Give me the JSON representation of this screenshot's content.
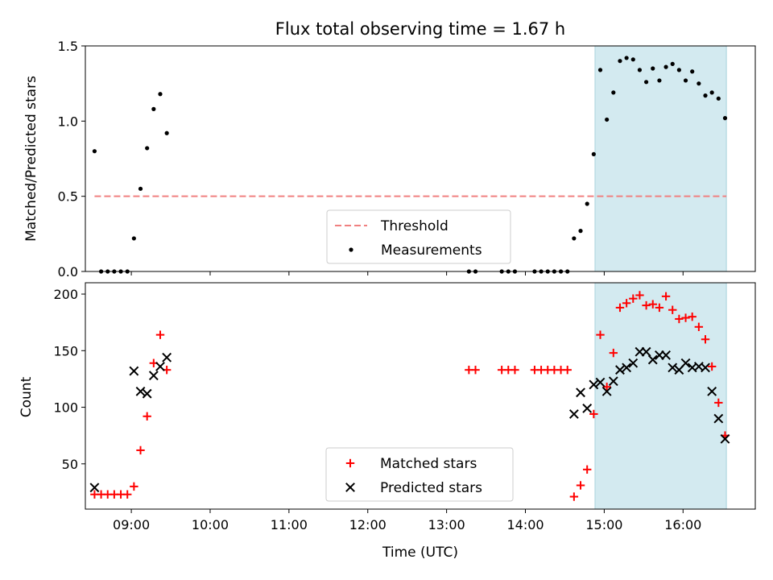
{
  "chart_data": [
    {
      "type": "scatter",
      "title": "Flux total observing time = 1.67 h",
      "xlabel": "",
      "ylabel": "Matched/Predicted stars",
      "xlim": [
        "08:25",
        "16:55"
      ],
      "ylim": [
        0,
        1.5
      ],
      "yticks": [
        0.0,
        0.5,
        1.0,
        1.5
      ],
      "ytick_labels": [
        "0.0",
        "0.5",
        "1.0",
        "1.5"
      ],
      "xticks": [
        "09:00",
        "10:00",
        "11:00",
        "12:00",
        "13:00",
        "14:00",
        "15:00",
        "16:00"
      ],
      "highlight_span": [
        "14:53",
        "16:33"
      ],
      "highlight_color": "#d3eaf0",
      "threshold": {
        "name": "Threshold",
        "y": 0.5,
        "x_start": "08:32",
        "x_end": "16:33",
        "color": "#f08080"
      },
      "legend": {
        "placement": "lower-center",
        "entries": [
          "Threshold",
          "Measurements"
        ]
      },
      "series": [
        {
          "name": "Measurements",
          "marker": "dot",
          "color": "#000000",
          "points": [
            [
              "08:32",
              0.8
            ],
            [
              "08:37",
              0.0
            ],
            [
              "08:42",
              0.0
            ],
            [
              "08:47",
              0.0
            ],
            [
              "08:52",
              0.0
            ],
            [
              "08:57",
              0.0
            ],
            [
              "09:02",
              0.22
            ],
            [
              "09:07",
              0.55
            ],
            [
              "09:12",
              0.82
            ],
            [
              "09:17",
              1.08
            ],
            [
              "09:22",
              1.18
            ],
            [
              "09:27",
              0.92
            ],
            [
              "13:17",
              0.0
            ],
            [
              "13:22",
              0.0
            ],
            [
              "13:42",
              0.0
            ],
            [
              "13:47",
              0.0
            ],
            [
              "13:52",
              0.0
            ],
            [
              "14:07",
              0.0
            ],
            [
              "14:12",
              0.0
            ],
            [
              "14:17",
              0.0
            ],
            [
              "14:22",
              0.0
            ],
            [
              "14:27",
              0.0
            ],
            [
              "14:32",
              0.0
            ],
            [
              "14:37",
              0.22
            ],
            [
              "14:42",
              0.27
            ],
            [
              "14:47",
              0.45
            ],
            [
              "14:52",
              0.78
            ],
            [
              "14:57",
              1.34
            ],
            [
              "15:02",
              1.01
            ],
            [
              "15:07",
              1.19
            ],
            [
              "15:12",
              1.4
            ],
            [
              "15:17",
              1.42
            ],
            [
              "15:22",
              1.41
            ],
            [
              "15:27",
              1.34
            ],
            [
              "15:32",
              1.26
            ],
            [
              "15:37",
              1.35
            ],
            [
              "15:42",
              1.27
            ],
            [
              "15:47",
              1.36
            ],
            [
              "15:52",
              1.38
            ],
            [
              "15:57",
              1.34
            ],
            [
              "16:02",
              1.27
            ],
            [
              "16:07",
              1.33
            ],
            [
              "16:12",
              1.25
            ],
            [
              "16:17",
              1.17
            ],
            [
              "16:22",
              1.19
            ],
            [
              "16:27",
              1.15
            ],
            [
              "16:32",
              1.02
            ]
          ]
        }
      ]
    },
    {
      "type": "scatter",
      "title": "",
      "xlabel": "Time (UTC)",
      "ylabel": "Count",
      "xlim": [
        "08:25",
        "16:55"
      ],
      "ylim": [
        10,
        210
      ],
      "yticks": [
        50,
        100,
        150,
        200
      ],
      "ytick_labels": [
        "50",
        "100",
        "150",
        "200"
      ],
      "xticks": [
        "09:00",
        "10:00",
        "11:00",
        "12:00",
        "13:00",
        "14:00",
        "15:00",
        "16:00"
      ],
      "xtick_labels": [
        "09:00",
        "10:00",
        "11:00",
        "12:00",
        "13:00",
        "14:00",
        "15:00",
        "16:00"
      ],
      "highlight_span": [
        "14:53",
        "16:33"
      ],
      "highlight_color": "#d3eaf0",
      "legend": {
        "placement": "lower-center",
        "entries": [
          "Matched stars",
          "Predicted stars"
        ]
      },
      "series": [
        {
          "name": "Matched stars",
          "marker": "plus",
          "color": "#ff0000",
          "points": [
            [
              "08:32",
              23
            ],
            [
              "08:37",
              23
            ],
            [
              "08:42",
              23
            ],
            [
              "08:47",
              23
            ],
            [
              "08:52",
              23
            ],
            [
              "08:57",
              23
            ],
            [
              "09:02",
              30
            ],
            [
              "09:07",
              62
            ],
            [
              "09:12",
              92
            ],
            [
              "09:17",
              139
            ],
            [
              "09:22",
              164
            ],
            [
              "09:27",
              133
            ],
            [
              "13:17",
              133
            ],
            [
              "13:22",
              133
            ],
            [
              "13:42",
              133
            ],
            [
              "13:47",
              133
            ],
            [
              "13:52",
              133
            ],
            [
              "14:07",
              133
            ],
            [
              "14:12",
              133
            ],
            [
              "14:17",
              133
            ],
            [
              "14:22",
              133
            ],
            [
              "14:27",
              133
            ],
            [
              "14:32",
              133
            ],
            [
              "14:37",
              21
            ],
            [
              "14:42",
              31
            ],
            [
              "14:47",
              45
            ],
            [
              "14:52",
              94
            ],
            [
              "14:57",
              164
            ],
            [
              "15:02",
              118
            ],
            [
              "15:07",
              148
            ],
            [
              "15:12",
              188
            ],
            [
              "15:17",
              192
            ],
            [
              "15:22",
              196
            ],
            [
              "15:27",
              199
            ],
            [
              "15:32",
              190
            ],
            [
              "15:37",
              191
            ],
            [
              "15:42",
              188
            ],
            [
              "15:47",
              198
            ],
            [
              "15:52",
              186
            ],
            [
              "15:57",
              178
            ],
            [
              "16:02",
              179
            ],
            [
              "16:07",
              180
            ],
            [
              "16:12",
              171
            ],
            [
              "16:17",
              160
            ],
            [
              "16:22",
              136
            ],
            [
              "16:27",
              104
            ],
            [
              "16:32",
              75
            ]
          ]
        },
        {
          "name": "Predicted stars",
          "marker": "x",
          "color": "#000000",
          "points": [
            [
              "08:32",
              29
            ],
            [
              "09:02",
              132
            ],
            [
              "09:07",
              114
            ],
            [
              "09:12",
              112
            ],
            [
              "09:17",
              128
            ],
            [
              "09:22",
              136
            ],
            [
              "09:27",
              144
            ],
            [
              "14:37",
              94
            ],
            [
              "14:42",
              113
            ],
            [
              "14:47",
              99
            ],
            [
              "14:52",
              120
            ],
            [
              "14:57",
              122
            ],
            [
              "15:02",
              114
            ],
            [
              "15:07",
              123
            ],
            [
              "15:12",
              133
            ],
            [
              "15:17",
              135
            ],
            [
              "15:22",
              139
            ],
            [
              "15:27",
              149
            ],
            [
              "15:32",
              149
            ],
            [
              "15:37",
              142
            ],
            [
              "15:42",
              146
            ],
            [
              "15:47",
              146
            ],
            [
              "15:52",
              135
            ],
            [
              "15:57",
              133
            ],
            [
              "16:02",
              139
            ],
            [
              "16:07",
              135
            ],
            [
              "16:12",
              136
            ],
            [
              "16:17",
              135
            ],
            [
              "16:22",
              114
            ],
            [
              "16:27",
              90
            ],
            [
              "16:32",
              72
            ]
          ]
        }
      ]
    }
  ]
}
